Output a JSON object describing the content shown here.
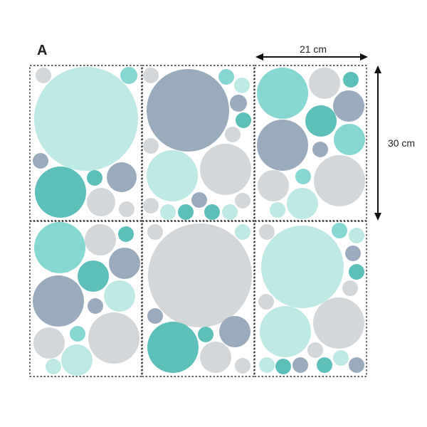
{
  "variant_label": "A",
  "width_label": "21 cm",
  "height_label": "30 cm",
  "colors": {
    "mint": "#bdeae4",
    "teal": "#5dbfba",
    "aqua": "#86d6d2",
    "slate": "#9aabbd",
    "gray": "#d4d7da",
    "sheet_border": "#333333",
    "arrow": "#111111"
  },
  "sheets": [
    {
      "circles": [
        {
          "c": "gray"
        },
        {
          "c": "aqua"
        },
        {
          "c": "mint"
        },
        {
          "c": "slate"
        },
        {
          "c": "teal"
        },
        {
          "c": "teal"
        },
        {
          "c": "slate"
        },
        {
          "c": "gray"
        },
        {
          "c": "gray"
        }
      ]
    },
    {
      "circles": [
        {
          "c": "gray"
        },
        {
          "c": "slate"
        },
        {
          "c": "aqua"
        },
        {
          "c": "mint"
        },
        {
          "c": "slate"
        },
        {
          "c": "teal"
        },
        {
          "c": "gray"
        },
        {
          "c": "gray"
        },
        {
          "c": "mint"
        },
        {
          "c": "gray"
        },
        {
          "c": "gray"
        },
        {
          "c": "mint"
        },
        {
          "c": "teal"
        },
        {
          "c": "slate"
        },
        {
          "c": "teal"
        },
        {
          "c": "mint"
        },
        {
          "c": "gray"
        }
      ]
    },
    {
      "circles": [
        {
          "c": "aqua"
        },
        {
          "c": "gray"
        },
        {
          "c": "teal"
        },
        {
          "c": "slate"
        },
        {
          "c": "teal"
        },
        {
          "c": "slate"
        },
        {
          "c": "aqua"
        },
        {
          "c": "slate"
        },
        {
          "c": "gray"
        },
        {
          "c": "aqua"
        },
        {
          "c": "gray"
        },
        {
          "c": "mint"
        },
        {
          "c": "mint"
        }
      ]
    },
    {
      "circles": [
        {
          "c": "aqua"
        },
        {
          "c": "gray"
        },
        {
          "c": "teal"
        },
        {
          "c": "slate"
        },
        {
          "c": "teal"
        },
        {
          "c": "slate"
        },
        {
          "c": "slate"
        },
        {
          "c": "mint"
        },
        {
          "c": "gray"
        },
        {
          "c": "aqua"
        },
        {
          "c": "gray"
        },
        {
          "c": "mint"
        },
        {
          "c": "mint"
        }
      ]
    },
    {
      "circles": [
        {
          "c": "gray"
        },
        {
          "c": "mint"
        },
        {
          "c": "gray"
        },
        {
          "c": "slate"
        },
        {
          "c": "teal"
        },
        {
          "c": "teal"
        },
        {
          "c": "slate"
        },
        {
          "c": "gray"
        },
        {
          "c": "gray"
        }
      ]
    },
    {
      "circles": [
        {
          "c": "gray"
        },
        {
          "c": "mint"
        },
        {
          "c": "aqua"
        },
        {
          "c": "mint"
        },
        {
          "c": "slate"
        },
        {
          "c": "teal"
        },
        {
          "c": "gray"
        },
        {
          "c": "gray"
        },
        {
          "c": "mint"
        },
        {
          "c": "gray"
        },
        {
          "c": "mint"
        },
        {
          "c": "teal"
        },
        {
          "c": "slate"
        },
        {
          "c": "gray"
        },
        {
          "c": "teal"
        },
        {
          "c": "mint"
        },
        {
          "c": "slate"
        }
      ]
    }
  ]
}
